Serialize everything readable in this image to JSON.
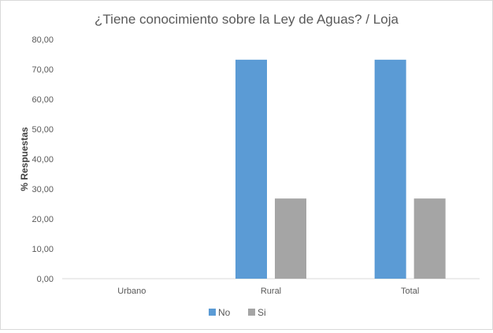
{
  "chart_data": {
    "type": "bar",
    "title": "¿Tiene conocimiento sobre la Ley de Aguas? / Loja",
    "xlabel": "",
    "ylabel": "% Respuestas",
    "categories": [
      "Urbano",
      "Rural",
      "Total"
    ],
    "series": [
      {
        "name": "No",
        "color": "#5b9bd5",
        "values": [
          0,
          73.2,
          73.2
        ]
      },
      {
        "name": "Si",
        "color": "#a5a5a5",
        "values": [
          0,
          26.8,
          26.8
        ]
      }
    ],
    "ylim": [
      0,
      80
    ],
    "yticks": [
      "0,00",
      "10,00",
      "20,00",
      "30,00",
      "40,00",
      "50,00",
      "60,00",
      "70,00",
      "80,00"
    ],
    "grid": false,
    "legend": "bottom"
  }
}
